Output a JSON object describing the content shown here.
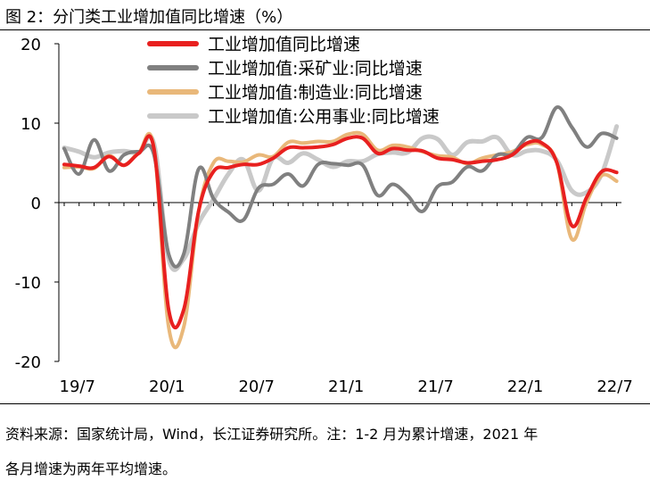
{
  "figure": {
    "title": "图 2：分门类工业增加值同比增速（%）",
    "source_note_line1": "资料来源：国家统计局，Wind，长江证券研究所。注：1-2 月为累计增速，2021 年",
    "source_note_line2": "各月增速为两年平均增速。"
  },
  "chart_data": {
    "type": "line",
    "x": [
      "19/6",
      "19/7",
      "19/8",
      "19/9",
      "19/10",
      "19/11",
      "19/12",
      "20/1",
      "20/2",
      "20/3",
      "20/4",
      "20/5",
      "20/6",
      "20/7",
      "20/8",
      "20/9",
      "20/10",
      "20/11",
      "20/12",
      "21/1",
      "21/2",
      "21/3",
      "21/4",
      "21/5",
      "21/6",
      "21/7",
      "21/8",
      "21/9",
      "21/10",
      "21/11",
      "21/12",
      "22/1",
      "22/2",
      "22/3",
      "22/4",
      "22/5",
      "22/6",
      "22/7"
    ],
    "x_tick_labels": [
      "19/7",
      "20/1",
      "20/7",
      "21/1",
      "21/7",
      "22/1",
      "22/7"
    ],
    "ylim": [
      -20,
      20
    ],
    "y_ticks": [
      -20,
      -10,
      0,
      10,
      20
    ],
    "legend_position": "top",
    "series": [
      {
        "name": "工业增加值同比增速",
        "color": "#e8201f",
        "width": 4,
        "values": [
          4.8,
          4.6,
          4.4,
          5.8,
          4.7,
          6.2,
          6.9,
          -13.5,
          -13.5,
          -1.1,
          3.9,
          4.4,
          4.8,
          4.8,
          5.6,
          6.9,
          6.9,
          7.0,
          7.3,
          8.1,
          8.1,
          6.2,
          6.8,
          6.6,
          6.5,
          5.6,
          5.4,
          5.0,
          5.2,
          5.4,
          6.0,
          7.5,
          7.5,
          5.0,
          -2.9,
          0.7,
          3.9,
          3.8
        ]
      },
      {
        "name": "工业增加值:采矿业:同比增速",
        "color": "#808080",
        "width": 4,
        "values": [
          6.8,
          3.6,
          7.9,
          4.0,
          6.0,
          6.4,
          6.1,
          -6.5,
          -6.5,
          4.2,
          0.5,
          -1.2,
          -2.2,
          1.8,
          2.3,
          3.6,
          2.1,
          4.8,
          4.9,
          4.7,
          4.7,
          0.9,
          2.3,
          0.9,
          -1.1,
          2.0,
          2.6,
          4.5,
          4.0,
          6.0,
          6.1,
          8.2,
          8.2,
          12.0,
          9.5,
          7.0,
          8.7,
          8.1
        ]
      },
      {
        "name": "工业增加值:制造业:同比增速",
        "color": "#e9b87a",
        "width": 4,
        "values": [
          4.4,
          4.5,
          4.3,
          5.9,
          4.7,
          6.3,
          7.0,
          -15.7,
          -15.7,
          -1.2,
          5.0,
          5.2,
          5.1,
          6.0,
          5.8,
          7.6,
          7.5,
          7.7,
          7.7,
          8.6,
          8.6,
          6.6,
          7.2,
          7.0,
          6.4,
          5.9,
          5.7,
          4.9,
          5.6,
          6.0,
          6.4,
          7.3,
          7.3,
          5.0,
          -4.6,
          0.1,
          3.4,
          2.7
        ]
      },
      {
        "name": "工业增加值:公用事业:同比增速",
        "color": "#c9c9c9",
        "width": 5,
        "values": [
          6.9,
          6.4,
          5.7,
          6.3,
          6.5,
          6.3,
          7.5,
          -7.1,
          -7.1,
          -2.6,
          0.4,
          3.6,
          5.4,
          1.5,
          5.6,
          5.0,
          6.2,
          5.4,
          4.5,
          5.2,
          5.2,
          6.1,
          6.3,
          6.3,
          8.1,
          8.0,
          6.0,
          7.6,
          7.7,
          8.2,
          6.0,
          6.5,
          6.5,
          5.3,
          1.5,
          1.3,
          3.6,
          9.6
        ]
      }
    ]
  }
}
